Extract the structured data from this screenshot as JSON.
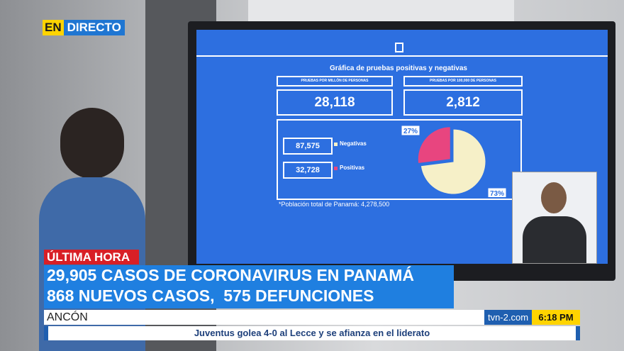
{
  "live_badge": {
    "en": "EN",
    "live": "DIRECTO"
  },
  "screen": {
    "title": "Gráfica de pruebas positivas y negativas",
    "boxes": [
      {
        "label": "PRUEBAS POR MILLÓN DE PERSONAS",
        "value": "28,118"
      },
      {
        "label": "PRUEBAS POR 100,000 DE PERSONAS",
        "value": "2,812"
      }
    ],
    "legend": [
      {
        "value": "87,575",
        "label": "Negativas"
      },
      {
        "value": "32,728",
        "label": "Positivas"
      }
    ],
    "population": "*Población total de Panamá: 4,278,500"
  },
  "chart_data": {
    "type": "pie",
    "values": [
      27,
      73
    ],
    "value_labels": [
      "27%",
      "73%"
    ],
    "colors": [
      "#e8457f",
      "#f6f0c8"
    ]
  },
  "lower_third": {
    "tag": "ÚLTIMA HORA",
    "headline": [
      "29,905 CASOS DE CORONAVIRUS EN PANAMÁ",
      "868 NUEVOS CASOS,  575 DEFUNCIONES"
    ],
    "location": "ANCÓN",
    "site": "tvn-2.com",
    "time": "6:18 PM",
    "ticker": "Juventus golea 4-0 al Lecce y se afianza en el liderato"
  }
}
